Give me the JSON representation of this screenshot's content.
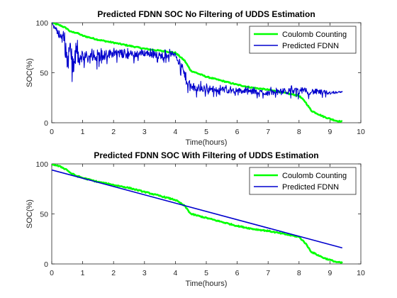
{
  "chart_data": [
    {
      "type": "line",
      "title": "Predicted FDNN SOC No Filtering of UDDS Estimation",
      "xlabel": "Time(hours)",
      "ylabel": "SOC(%)",
      "xlim": [
        0,
        10
      ],
      "ylim": [
        0,
        100
      ],
      "xticks": [
        "0",
        "1",
        "2",
        "3",
        "4",
        "5",
        "6",
        "7",
        "8",
        "9",
        "10"
      ],
      "yticks": [
        "0",
        "50",
        "100"
      ],
      "grid": false,
      "legend_position": "top-right",
      "series": [
        {
          "name": "Coulomb Counting",
          "color": "#00ff00",
          "x": [
            0,
            0.3,
            0.5,
            0.6,
            0.8,
            1.0,
            1.5,
            2.0,
            2.5,
            3.0,
            3.5,
            4.0,
            4.3,
            4.5,
            5.0,
            5.5,
            6.0,
            6.5,
            7.0,
            7.5,
            8.0,
            8.2,
            8.4,
            8.8,
            9.2,
            9.4
          ],
          "y": [
            100,
            97,
            94,
            91,
            90,
            87,
            83,
            80,
            77,
            74,
            72,
            70,
            62,
            52,
            46,
            42,
            38,
            35,
            33,
            30,
            27,
            21,
            12,
            6,
            2,
            1
          ]
        },
        {
          "name": "Predicted FDNN",
          "color": "#0000cd",
          "x": [
            0,
            0.2,
            0.4,
            0.5,
            0.6,
            0.7,
            0.8,
            0.9,
            1.0,
            1.2,
            1.5,
            2.0,
            2.5,
            3.0,
            3.5,
            4.0,
            4.2,
            4.4,
            4.5,
            5.0,
            5.5,
            6.0,
            6.5,
            7.0,
            7.5,
            8.0,
            8.5,
            9.0,
            9.4
          ],
          "y": [
            100,
            90,
            83,
            60,
            75,
            55,
            72,
            60,
            68,
            65,
            66,
            70,
            68,
            70,
            67,
            69,
            55,
            40,
            35,
            34,
            33,
            32,
            31,
            30,
            31,
            32,
            31,
            30,
            31
          ],
          "noise": [
            0,
            6,
            10,
            22,
            15,
            18,
            14,
            12,
            10,
            10,
            9,
            7,
            7,
            6,
            6,
            5,
            8,
            10,
            8,
            6,
            5,
            5,
            5,
            5,
            5,
            6,
            5,
            3,
            1
          ]
        }
      ]
    },
    {
      "type": "line",
      "title": "Predicted FDNN SOC With Filtering of UDDS Estimation",
      "xlabel": "Time(hours)",
      "ylabel": "SOC(%)",
      "xlim": [
        0,
        10
      ],
      "ylim": [
        0,
        100
      ],
      "xticks": [
        "0",
        "1",
        "2",
        "3",
        "4",
        "5",
        "6",
        "7",
        "8",
        "9",
        "10"
      ],
      "yticks": [
        "0",
        "50",
        "100"
      ],
      "grid": false,
      "legend_position": "top-right",
      "series": [
        {
          "name": "Coulomb Counting",
          "color": "#00ff00",
          "x": [
            0,
            0.3,
            0.5,
            0.6,
            0.8,
            1.0,
            1.5,
            2.0,
            2.5,
            3.0,
            3.5,
            4.0,
            4.3,
            4.5,
            5.0,
            5.5,
            6.0,
            6.5,
            7.0,
            7.5,
            8.0,
            8.2,
            8.4,
            8.8,
            9.2,
            9.4
          ],
          "y": [
            100,
            97,
            94,
            91,
            88,
            86,
            82,
            79,
            76,
            72,
            68,
            64,
            58,
            50,
            46,
            42,
            38,
            35,
            33,
            30,
            27,
            21,
            12,
            6,
            2,
            1
          ]
        },
        {
          "name": "Predicted FDNN",
          "color": "#0000cd",
          "x": [
            0,
            9.4
          ],
          "y": [
            94,
            16
          ]
        }
      ]
    }
  ]
}
